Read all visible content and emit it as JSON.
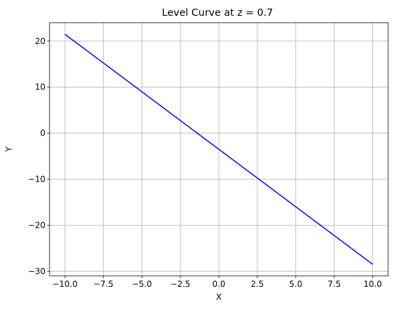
{
  "chart_data": {
    "type": "line",
    "title": "Level Curve at z = 0.7",
    "xlabel": "X",
    "ylabel": "Y",
    "xlim": [
      -11,
      11
    ],
    "ylim": [
      -31,
      24
    ],
    "xticks": [
      -10.0,
      -7.5,
      -5.0,
      -2.5,
      0.0,
      2.5,
      5.0,
      7.5,
      10.0
    ],
    "xtick_labels": [
      "−10.0",
      "−7.5",
      "−5.0",
      "−2.5",
      "0.0",
      "2.5",
      "5.0",
      "7.5",
      "10.0"
    ],
    "yticks": [
      -30,
      -20,
      -10,
      0,
      10,
      20
    ],
    "ytick_labels": [
      "−30",
      "−20",
      "−10",
      "0",
      "10",
      "20"
    ],
    "grid": true,
    "series": [
      {
        "color": "#0000ff",
        "x": [
          -10,
          10
        ],
        "y": [
          21.5,
          -28.5
        ]
      }
    ]
  }
}
